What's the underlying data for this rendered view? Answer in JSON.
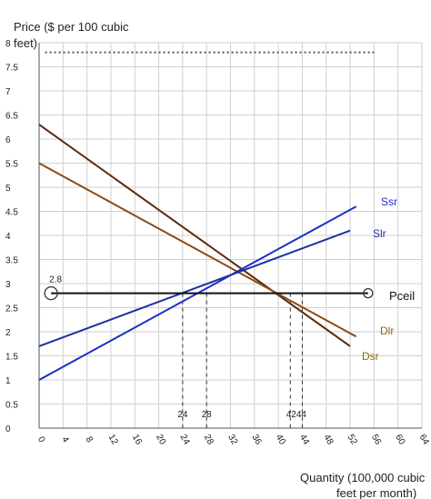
{
  "chart_data": {
    "type": "line",
    "ylabel": "Price ($ per 100 cubic feet)",
    "xlabel": "Quantity (100,000 cubic feet per month)",
    "xlim": [
      0,
      64
    ],
    "ylim": [
      0,
      8
    ],
    "x_ticks": [
      "0",
      "4",
      "8",
      "12",
      "16",
      "20",
      "24",
      "28",
      "32",
      "36",
      "40",
      "44",
      "48",
      "52",
      "56",
      "60",
      "64"
    ],
    "y_ticks": [
      "0",
      "0.5",
      "1",
      "1.5",
      "2",
      "2.5",
      "3",
      "3.5",
      "4",
      "4.5",
      "5",
      "5.5",
      "6",
      "6.5",
      "7",
      "7.5",
      "8"
    ],
    "grid": true,
    "series": [
      {
        "name": "Dsr",
        "color": "#5b2a0e",
        "points": [
          [
            0,
            6.3
          ],
          [
            52,
            1.7
          ]
        ]
      },
      {
        "name": "Dlr",
        "color": "#8a4a14",
        "points": [
          [
            0,
            5.5
          ],
          [
            53,
            1.9
          ]
        ]
      },
      {
        "name": "Ssr",
        "color": "#1a2fc9",
        "points": [
          [
            0,
            1.0
          ],
          [
            53,
            4.6
          ]
        ]
      },
      {
        "name": "Slr",
        "color": "#1c2fa8",
        "points": [
          [
            0,
            1.7
          ],
          [
            52,
            4.1
          ]
        ]
      },
      {
        "name": "Pceil",
        "color": "#111111",
        "points": [
          [
            2,
            2.8
          ],
          [
            55,
            2.8
          ]
        ]
      }
    ],
    "series_label_colors": {
      "Ssr": "#1a2fc9",
      "Slr": "#1c2fa8",
      "Dlr": "#8a6a10",
      "Dsr": "#8a6a10",
      "Pceil": "#111111"
    },
    "dotted_line": {
      "y": 7.8,
      "x": [
        1,
        56
      ],
      "color": "#555555"
    },
    "ceiling_label": "2.8",
    "dashed_verticals": [
      {
        "x": 24,
        "y": 2.8
      },
      {
        "x": 28,
        "y": 2.8
      },
      {
        "x": 42,
        "y": 2.8
      },
      {
        "x": 44,
        "y": 2.8
      }
    ],
    "quantity_labels": [
      {
        "text": "24",
        "x": 24
      },
      {
        "text": "28",
        "x": 28
      },
      {
        "text": "4244",
        "x": 43
      }
    ]
  }
}
